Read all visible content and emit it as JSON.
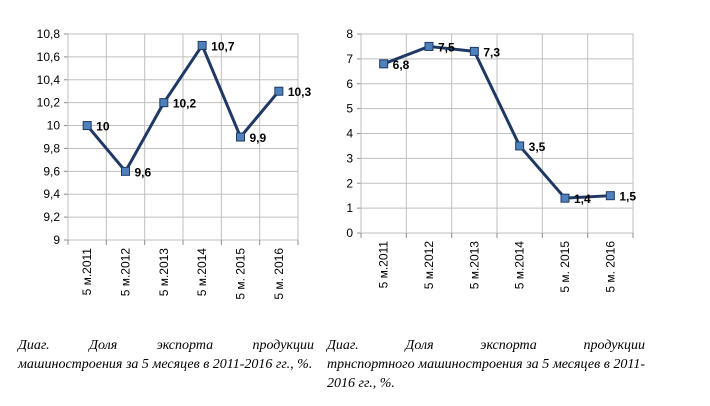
{
  "chart_data": [
    {
      "type": "line",
      "categories": [
        "5 м.2011",
        "5 м.2012",
        "5 м.2013",
        "5 м.2014",
        "5 м. 2015",
        "5 м. 2016"
      ],
      "series": [
        {
          "values": [
            10,
            9.6,
            10.2,
            10.7,
            9.9,
            10.3
          ]
        }
      ],
      "data_labels": [
        "10",
        "9,6",
        "10,2",
        "10,7",
        "9,9",
        "10,3"
      ],
      "yticks": [
        "9",
        "9,2",
        "9,4",
        "9,6",
        "9,8",
        "10",
        "10,2",
        "10,4",
        "10,6",
        "10,8"
      ],
      "ylim": [
        9,
        10.8
      ],
      "grid": true,
      "line_color": "#1f3864",
      "marker_color": "#4f81bd",
      "caption": [
        "Диаг.",
        "Доля",
        "экспорта",
        "продукции"
      ],
      "caption_rest": "машиностроения за 5 месяцев в 2011-2016 гг., %."
    },
    {
      "type": "line",
      "categories": [
        "5 м.2011",
        "5 м.2012",
        "5 м.2013",
        "5 м.2014",
        "5 м. 2015",
        "5 м. 2016"
      ],
      "series": [
        {
          "values": [
            6.8,
            7.5,
            7.3,
            3.5,
            1.4,
            1.5
          ]
        }
      ],
      "data_labels": [
        "6,8",
        "7,5",
        "7,3",
        "3,5",
        "1,4",
        "1,5"
      ],
      "yticks": [
        "0",
        "1",
        "2",
        "3",
        "4",
        "5",
        "6",
        "7",
        "8"
      ],
      "ylim": [
        0,
        8
      ],
      "grid": true,
      "line_color": "#1f3864",
      "marker_color": "#4f81bd",
      "caption": [
        "Диаг.",
        "Доля",
        "экспорта",
        "продукции"
      ],
      "caption_rest": "трнспортного машиностроения за 5 месяцев в 2011-2016 гг., %."
    }
  ]
}
